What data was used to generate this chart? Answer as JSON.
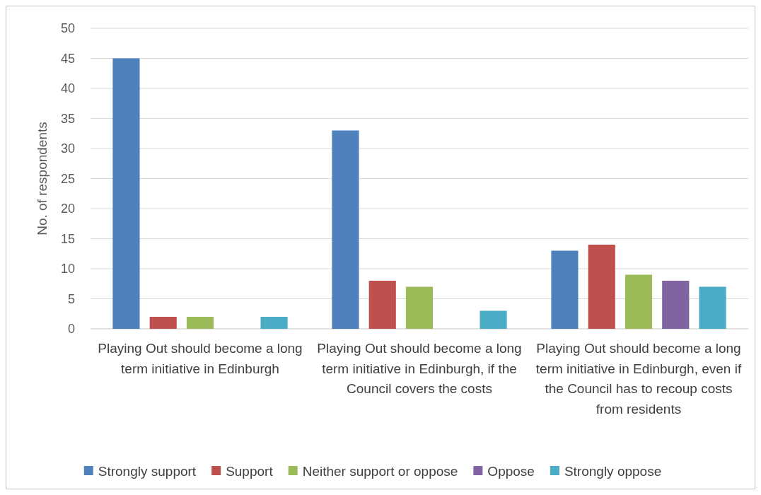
{
  "chart_data": {
    "type": "bar",
    "ylabel": "No. of respondents",
    "categories": [
      "Playing Out should become a long term initiative in Edinburgh",
      "Playing Out should become a long term initiative in Edinburgh, if the Council covers the costs",
      "Playing Out should become a long term initiative in Edinburgh, even if the Council has to recoup costs from residents"
    ],
    "series": [
      {
        "name": "Strongly support",
        "color": "#4f81bd",
        "values": [
          45,
          33,
          13
        ]
      },
      {
        "name": "Support",
        "color": "#c0504d",
        "values": [
          2,
          8,
          14
        ]
      },
      {
        "name": "Neither support or oppose",
        "color": "#9bbb59",
        "values": [
          2,
          7,
          9
        ]
      },
      {
        "name": "Oppose",
        "color": "#8064a2",
        "values": [
          0,
          0,
          8
        ]
      },
      {
        "name": "Strongly oppose",
        "color": "#4bacc6",
        "values": [
          2,
          3,
          7
        ]
      }
    ],
    "ylim": [
      0,
      50
    ],
    "yticks": [
      0,
      5,
      10,
      15,
      20,
      25,
      30,
      35,
      40,
      45,
      50
    ],
    "grid": "y",
    "legend": "bottom"
  }
}
